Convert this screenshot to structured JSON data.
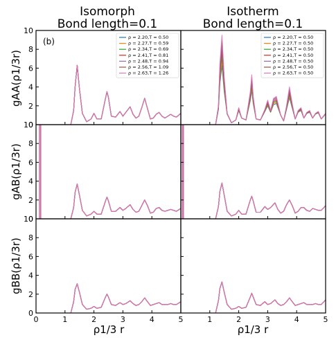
{
  "panel_tag": "(b)",
  "x_axis_label": "ρ1/3 r",
  "titles": {
    "left": [
      "Isomorph",
      "Bond length=0.1"
    ],
    "right": [
      "Isotherm",
      "Bond length=0.1"
    ]
  },
  "row_ylabels": [
    "gAA(ρ1/3r)",
    "gAB(ρ1/3r)",
    "gBB(ρ1/3r)"
  ],
  "x_ticks": [
    "0",
    "1",
    "2",
    "3",
    "4",
    "5"
  ],
  "y_ticks": [
    "0",
    "2",
    "4",
    "6",
    "8",
    "10"
  ],
  "chart_data": {
    "type": "line",
    "xlim": [
      0,
      5
    ],
    "ylim": [
      0,
      10
    ],
    "grid": false,
    "legend_placement": "top-right",
    "colors": [
      "#1f77b4",
      "#ff7f0e",
      "#2ca02c",
      "#d62728",
      "#9467bd",
      "#8c564b",
      "#e377c2"
    ],
    "legend": {
      "isomorph": [
        "ρ = 2.20,T = 0.50",
        "ρ = 2.27,T = 0.59",
        "ρ = 2.34,T = 0.69",
        "ρ = 2.41,T = 0.81",
        "ρ = 2.48,T = 0.94",
        "ρ = 2.56,T = 1.09",
        "ρ = 2.63,T = 1.26"
      ],
      "isotherm": [
        "ρ = 2.20,T = 0.50",
        "ρ = 2.27,T = 0.50",
        "ρ = 2.34,T = 0.50",
        "ρ = 2.41,T = 0.50",
        "ρ = 2.48,T = 0.50",
        "ρ = 2.56,T = 0.50",
        "ρ = 2.63,T = 0.50"
      ]
    },
    "panels": [
      {
        "row": "AA",
        "column": "isomorph",
        "x": [
          0,
          1.2,
          1.3,
          1.35,
          1.42,
          1.5,
          1.6,
          1.75,
          1.9,
          2.0,
          2.1,
          2.25,
          2.4,
          2.45,
          2.5,
          2.6,
          2.75,
          2.9,
          3.0,
          3.1,
          3.25,
          3.35,
          3.45,
          3.55,
          3.65,
          3.75,
          3.85,
          3.95,
          4.05,
          4.15,
          4.25,
          4.35,
          4.45,
          4.55,
          4.65,
          4.75,
          4.85,
          5.0
        ],
        "y": [
          0,
          0,
          1.5,
          4.0,
          6.3,
          3.8,
          1.2,
          0.3,
          0.6,
          1.2,
          0.6,
          0.6,
          2.8,
          3.5,
          2.9,
          0.9,
          0.8,
          1.4,
          0.9,
          1.3,
          1.9,
          1.1,
          0.7,
          0.9,
          1.8,
          2.8,
          1.7,
          0.6,
          0.7,
          1.1,
          1.3,
          0.9,
          0.7,
          0.9,
          1.1,
          0.9,
          0.8,
          1.2
        ]
      },
      {
        "row": "AA",
        "column": "isotherm",
        "x": [
          0,
          1.2,
          1.3,
          1.35,
          1.42,
          1.5,
          1.6,
          1.75,
          1.9,
          2.0,
          2.1,
          2.25,
          2.4,
          2.45,
          2.5,
          2.6,
          2.75,
          2.9,
          3.0,
          3.1,
          3.2,
          3.3,
          3.45,
          3.55,
          3.65,
          3.75,
          3.85,
          3.95,
          4.05,
          4.15,
          4.25,
          4.35,
          4.45,
          4.55,
          4.65,
          4.75,
          4.85,
          5.0
        ],
        "y": [
          0,
          0,
          2.0,
          6.5,
          9.5,
          5.0,
          1.2,
          0.2,
          0.5,
          1.8,
          0.7,
          0.5,
          3.5,
          5.3,
          3.0,
          0.6,
          0.5,
          1.6,
          2.6,
          1.5,
          2.8,
          3.0,
          1.0,
          0.4,
          2.0,
          4.0,
          2.2,
          0.6,
          1.5,
          1.8,
          0.7,
          1.3,
          1.5,
          0.7,
          1.2,
          1.4,
          0.6,
          1.2
        ]
      },
      {
        "row": "AB",
        "column": "isomorph",
        "x": [
          0,
          0.12,
          0.12,
          0.16,
          0.16,
          1.2,
          1.3,
          1.35,
          1.42,
          1.5,
          1.6,
          1.75,
          1.9,
          2.0,
          2.1,
          2.25,
          2.4,
          2.45,
          2.5,
          2.6,
          2.75,
          2.9,
          3.0,
          3.1,
          3.25,
          3.35,
          3.45,
          3.55,
          3.65,
          3.75,
          3.85,
          3.95,
          4.05,
          4.15,
          4.25,
          4.35,
          4.45,
          4.55,
          4.65,
          4.75,
          4.85,
          5.0
        ],
        "y": [
          0,
          0,
          10,
          10,
          0,
          0,
          1.2,
          2.8,
          3.7,
          2.5,
          0.9,
          0.3,
          0.5,
          0.8,
          0.5,
          0.5,
          1.9,
          2.3,
          1.9,
          0.8,
          0.8,
          1.2,
          0.9,
          1.1,
          1.5,
          1.0,
          0.7,
          0.8,
          1.4,
          2.0,
          1.4,
          0.6,
          0.7,
          1.1,
          1.2,
          0.9,
          0.8,
          0.9,
          1.0,
          0.9,
          0.8,
          1.1
        ]
      },
      {
        "row": "AB",
        "column": "isotherm",
        "x": [
          0,
          0.05,
          0.05,
          0.09,
          0.09,
          1.2,
          1.3,
          1.35,
          1.42,
          1.5,
          1.6,
          1.75,
          1.9,
          2.0,
          2.1,
          2.25,
          2.4,
          2.45,
          2.5,
          2.6,
          2.75,
          2.9,
          3.0,
          3.1,
          3.25,
          3.35,
          3.45,
          3.55,
          3.65,
          3.75,
          3.85,
          3.95,
          4.05,
          4.15,
          4.25,
          4.35,
          4.45,
          4.55,
          4.65,
          4.75,
          4.85,
          5.0
        ],
        "y": [
          0,
          0,
          10,
          10,
          0,
          0,
          1.3,
          2.9,
          3.8,
          2.5,
          0.8,
          0.3,
          0.5,
          0.9,
          0.5,
          0.5,
          2.0,
          2.4,
          1.9,
          0.7,
          0.7,
          1.3,
          1.0,
          1.2,
          1.7,
          1.0,
          0.6,
          0.8,
          1.5,
          2.0,
          1.4,
          0.6,
          0.8,
          1.2,
          1.2,
          0.9,
          0.8,
          1.1,
          1.0,
          0.9,
          0.9,
          1.4
        ]
      },
      {
        "row": "BB",
        "column": "isomorph",
        "x": [
          0,
          1.2,
          1.3,
          1.35,
          1.42,
          1.5,
          1.6,
          1.75,
          1.9,
          2.0,
          2.1,
          2.25,
          2.4,
          2.45,
          2.5,
          2.6,
          2.75,
          2.9,
          3.0,
          3.1,
          3.25,
          3.35,
          3.45,
          3.55,
          3.65,
          3.75,
          3.85,
          3.95,
          4.05,
          4.15,
          4.25,
          4.35,
          4.45,
          4.55,
          4.65,
          4.75,
          4.85,
          5.0
        ],
        "y": [
          0,
          0,
          1.2,
          2.5,
          3.1,
          2.2,
          0.9,
          0.4,
          0.5,
          0.7,
          0.5,
          0.6,
          1.7,
          2.0,
          1.7,
          0.9,
          0.8,
          1.1,
          0.9,
          1.0,
          1.3,
          1.0,
          0.8,
          0.9,
          1.2,
          1.6,
          1.2,
          0.8,
          0.9,
          1.0,
          1.1,
          0.9,
          0.9,
          0.9,
          1.0,
          0.9,
          0.9,
          1.2
        ]
      },
      {
        "row": "BB",
        "column": "isotherm",
        "x": [
          0,
          1.2,
          1.3,
          1.35,
          1.42,
          1.5,
          1.6,
          1.75,
          1.9,
          2.0,
          2.1,
          2.25,
          2.4,
          2.45,
          2.5,
          2.6,
          2.75,
          2.9,
          3.0,
          3.1,
          3.25,
          3.35,
          3.45,
          3.55,
          3.65,
          3.75,
          3.85,
          3.95,
          4.05,
          4.15,
          4.25,
          4.35,
          4.45,
          4.55,
          4.65,
          4.75,
          4.85,
          5.0
        ],
        "y": [
          0,
          0,
          1.3,
          2.6,
          3.3,
          2.2,
          0.9,
          0.4,
          0.5,
          0.7,
          0.5,
          0.6,
          1.7,
          2.1,
          1.7,
          0.9,
          0.8,
          1.2,
          0.9,
          1.0,
          1.4,
          1.0,
          0.8,
          0.9,
          1.2,
          1.6,
          1.2,
          0.8,
          0.9,
          1.0,
          1.1,
          0.9,
          0.9,
          0.9,
          1.0,
          0.9,
          0.9,
          1.4
        ]
      }
    ]
  }
}
